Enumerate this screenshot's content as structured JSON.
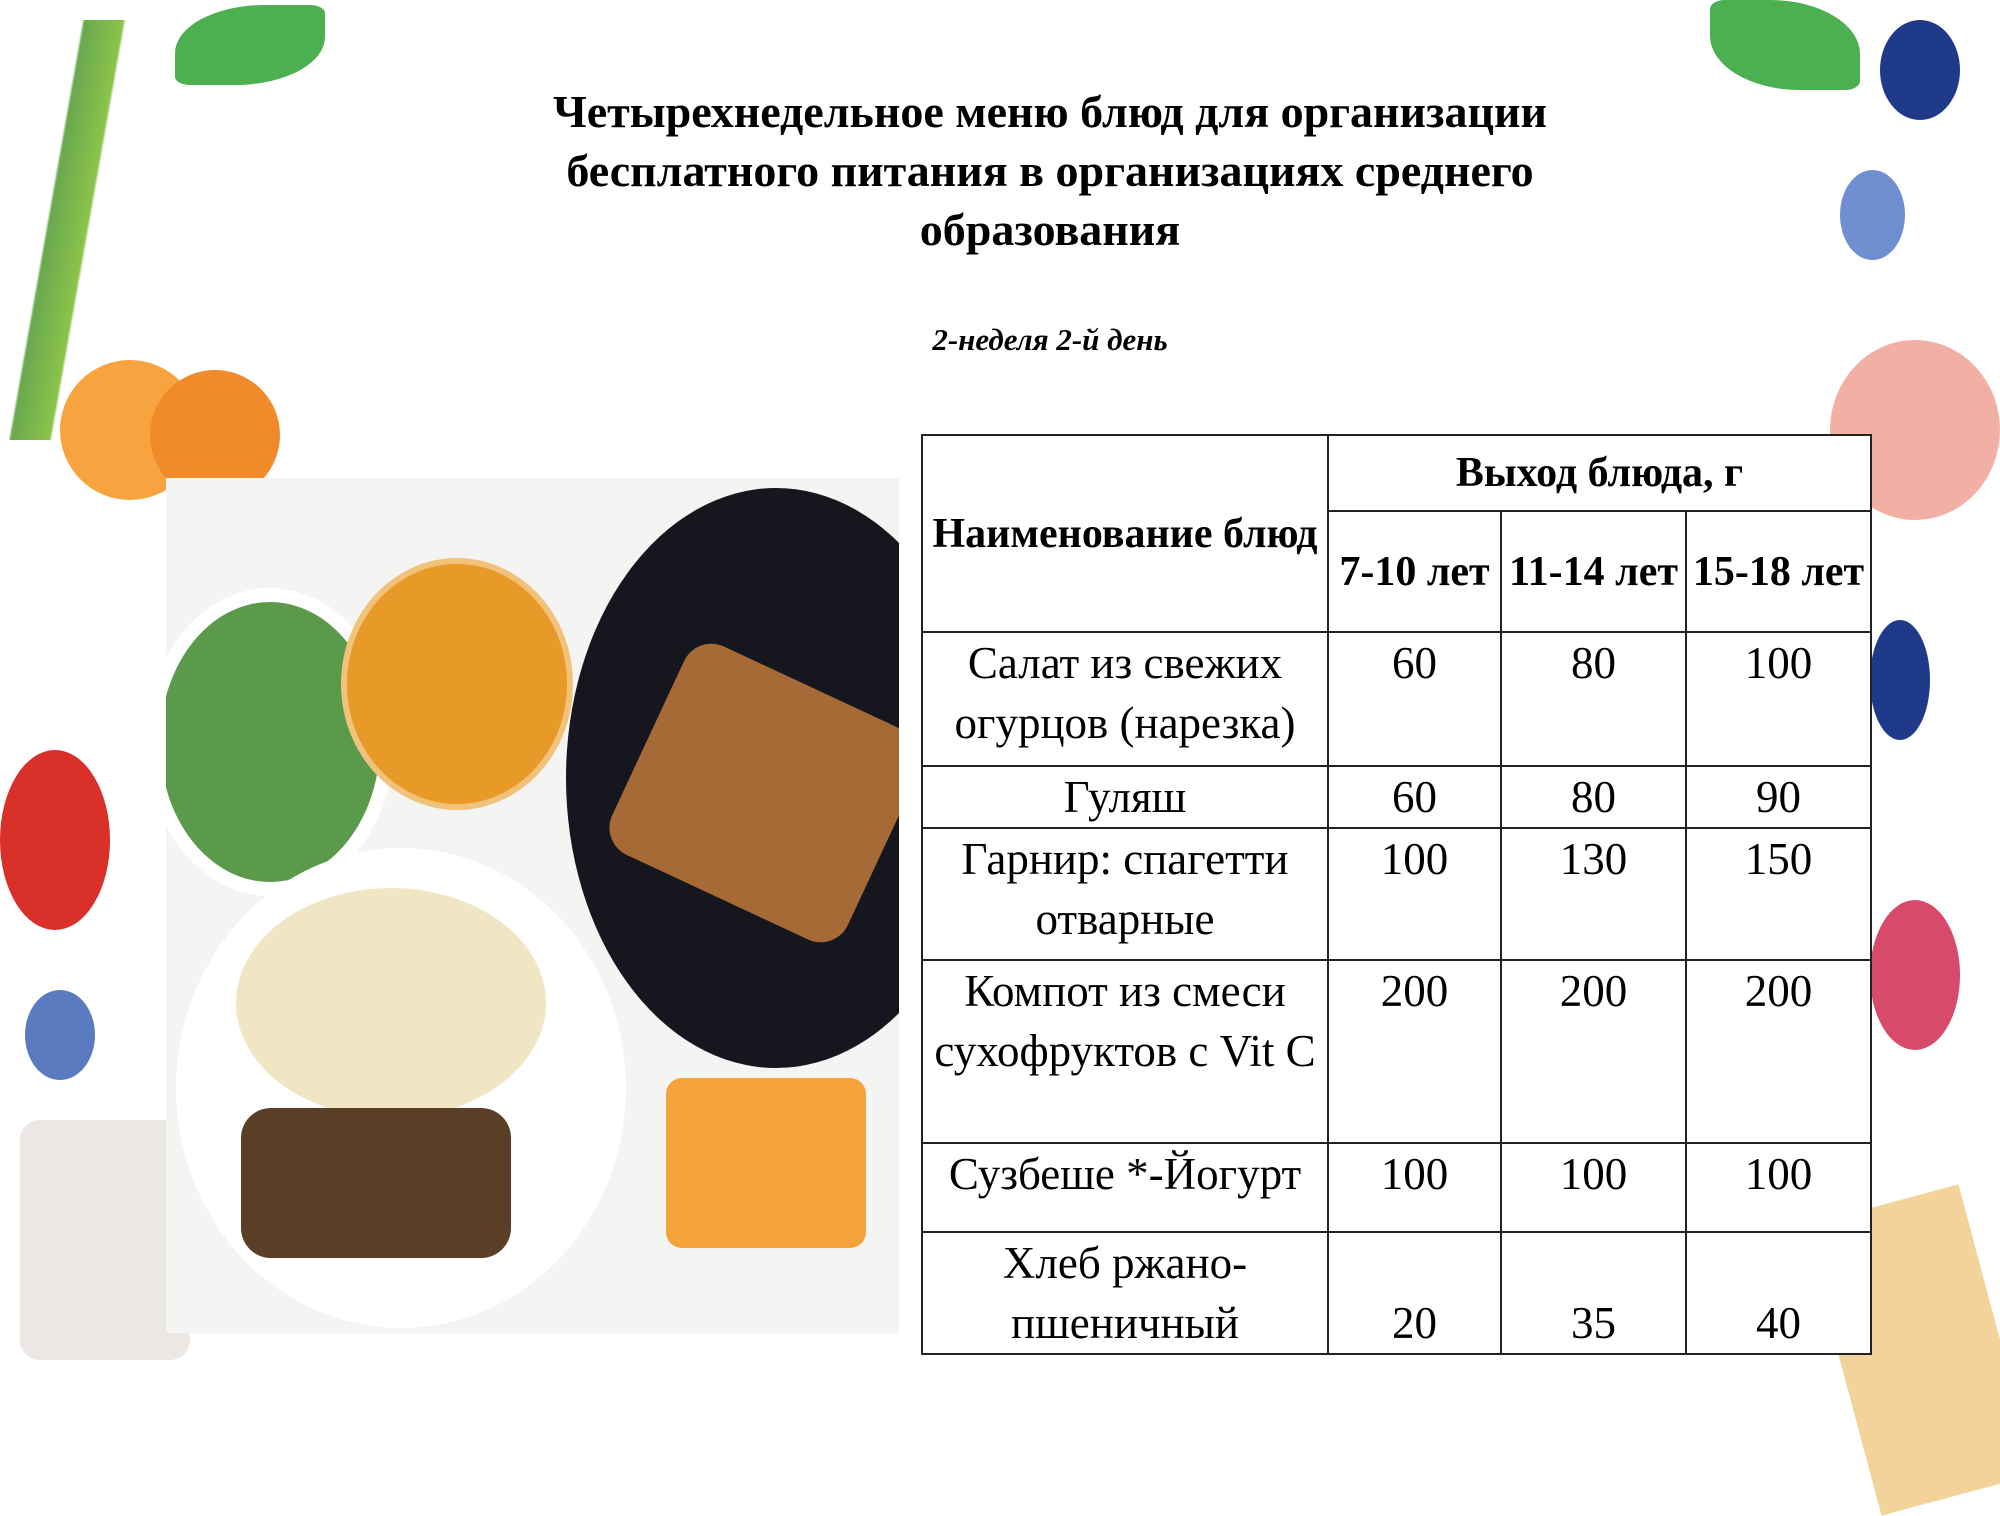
{
  "title": "Четырехнедельное меню блюд для организации бесплатного питания в организациях среднего образования",
  "subtitle": "2-неделя 2-й день",
  "table": {
    "header_name": "Наименование блюд",
    "header_yield": "Выход блюда, г",
    "age_groups": [
      "7-10 лет",
      "11-14 лет",
      "15-18 лет"
    ],
    "rows": [
      {
        "name": "Салат из свежих огурцов (нарезка)",
        "values": [
          "60",
          "80",
          "100"
        ]
      },
      {
        "name": "Гуляш",
        "values": [
          "60",
          "80",
          "90"
        ]
      },
      {
        "name": "Гарнир: спагетти отварные",
        "values": [
          "100",
          "130",
          "150"
        ]
      },
      {
        "name": "Компот из смеси сухофруктов с Vit C",
        "values": [
          "200",
          "200",
          "200"
        ]
      },
      {
        "name": "Сузбеше *-Йогурт",
        "values": [
          "100",
          "100",
          "100"
        ]
      },
      {
        "name": "Хлеб ржано-пшеничный",
        "values": [
          "20",
          "35",
          "40"
        ]
      }
    ]
  }
}
